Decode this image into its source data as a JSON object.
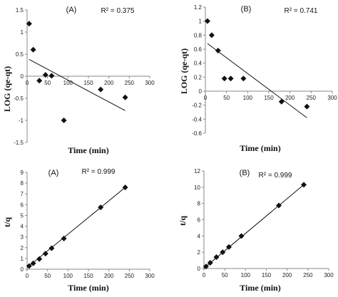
{
  "chart_data": [
    {
      "type": "scatter",
      "label": "(A)",
      "annotation": "R² = 0.375",
      "xlabel": "Time (min)",
      "ylabel": "LOG (qe-qt)",
      "xlim": [
        0,
        300
      ],
      "ylim": [
        -1.5,
        1.5
      ],
      "xticks": [
        0,
        50,
        100,
        150,
        200,
        250,
        300
      ],
      "yticks": [
        -1.5,
        -1,
        -0.5,
        0,
        0.5,
        1,
        1.5
      ],
      "grid": false,
      "points": [
        [
          5,
          1.19
        ],
        [
          15,
          0.6
        ],
        [
          30,
          -0.1
        ],
        [
          45,
          0.03
        ],
        [
          60,
          0.01
        ],
        [
          90,
          -1.0
        ],
        [
          180,
          -0.3
        ],
        [
          240,
          -0.48
        ]
      ],
      "trendline": {
        "x1": 5,
        "y1": 0.38,
        "x2": 240,
        "y2": -0.78
      }
    },
    {
      "type": "scatter",
      "label": "(B)",
      "annotation": "R² = 0.741",
      "xlabel": "Time (min)",
      "ylabel": "LOG (qe-qt)",
      "xlim": [
        0,
        300
      ],
      "ylim": [
        -0.6,
        1.2
      ],
      "xticks": [
        0,
        50,
        100,
        150,
        200,
        250,
        300
      ],
      "yticks": [
        -0.6,
        -0.4,
        -0.2,
        0,
        0.2,
        0.4,
        0.6,
        0.8,
        1,
        1.2
      ],
      "grid": false,
      "points": [
        [
          5,
          1.0
        ],
        [
          15,
          0.8
        ],
        [
          30,
          0.58
        ],
        [
          45,
          0.18
        ],
        [
          60,
          0.18
        ],
        [
          90,
          0.18
        ],
        [
          180,
          -0.15
        ],
        [
          240,
          -0.22
        ]
      ],
      "trendline": {
        "x1": 5,
        "y1": 0.68,
        "x2": 240,
        "y2": -0.38
      }
    },
    {
      "type": "scatter",
      "label": "(A)",
      "annotation": "R² = 0.999",
      "xlabel": "Time (min)",
      "ylabel": "t/q",
      "xlim": [
        0,
        300
      ],
      "ylim": [
        0,
        9
      ],
      "xticks": [
        0,
        50,
        100,
        150,
        200,
        250,
        300
      ],
      "yticks": [
        0,
        1,
        2,
        3,
        4,
        5,
        6,
        7,
        8,
        9
      ],
      "grid": false,
      "points": [
        [
          5,
          0.3
        ],
        [
          15,
          0.55
        ],
        [
          30,
          0.95
        ],
        [
          45,
          1.45
        ],
        [
          60,
          1.95
        ],
        [
          90,
          2.85
        ],
        [
          180,
          5.75
        ],
        [
          240,
          7.6
        ]
      ],
      "trendline": {
        "x1": 0,
        "y1": 0.15,
        "x2": 240,
        "y2": 7.6
      }
    },
    {
      "type": "scatter",
      "label": "(B)",
      "annotation": "R² = 0.999",
      "xlabel": "Time (min)",
      "ylabel": "t/q",
      "xlim": [
        0,
        300
      ],
      "ylim": [
        0,
        12
      ],
      "xticks": [
        0,
        50,
        100,
        150,
        200,
        250,
        300
      ],
      "yticks": [
        0,
        2,
        4,
        6,
        8,
        10,
        12
      ],
      "grid": false,
      "points": [
        [
          5,
          0.25
        ],
        [
          15,
          0.7
        ],
        [
          30,
          1.4
        ],
        [
          45,
          2.0
        ],
        [
          60,
          2.65
        ],
        [
          90,
          4.0
        ],
        [
          180,
          7.75
        ],
        [
          240,
          10.3
        ]
      ],
      "trendline": {
        "x1": 0,
        "y1": 0.05,
        "x2": 240,
        "y2": 10.3
      }
    }
  ]
}
